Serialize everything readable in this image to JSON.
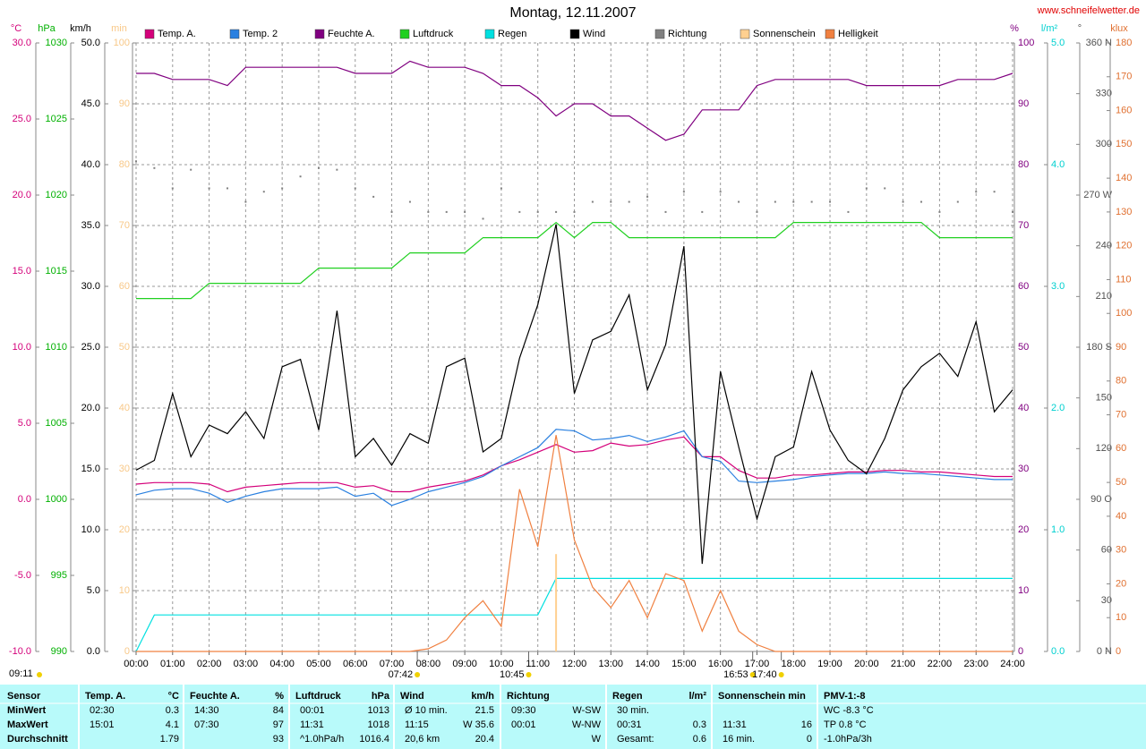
{
  "chart_data": {
    "type": "line",
    "title": "Montag, 12.11.2007",
    "source": "www.schneifelwetter.de",
    "day_length": "09:11",
    "annotations": [
      {
        "x": 7.7,
        "label": "07:42"
      },
      {
        "x": 10.75,
        "label": "10:45"
      },
      {
        "x": 16.883,
        "label": "16:53"
      },
      {
        "x": 17.667,
        "label": "17:40"
      }
    ],
    "xlim": [
      0,
      24
    ],
    "xticks": [
      {
        "value": 0,
        "label": "00:00"
      },
      {
        "value": 1,
        "label": "01:00"
      },
      {
        "value": 2,
        "label": "02:00"
      },
      {
        "value": 3,
        "label": "03:00"
      },
      {
        "value": 4,
        "label": "04:00"
      },
      {
        "value": 5,
        "label": "05:00"
      },
      {
        "value": 6,
        "label": "06:00"
      },
      {
        "value": 7,
        "label": "07:00"
      },
      {
        "value": 8,
        "label": "08:00"
      },
      {
        "value": 9,
        "label": "09:00"
      },
      {
        "value": 10,
        "label": "10:00"
      },
      {
        "value": 11,
        "label": "11:00"
      },
      {
        "value": 12,
        "label": "12:00"
      },
      {
        "value": 13,
        "label": "13:00"
      },
      {
        "value": 14,
        "label": "14:00"
      },
      {
        "value": 15,
        "label": "15:00"
      },
      {
        "value": 16,
        "label": "16:00"
      },
      {
        "value": 17,
        "label": "17:00"
      },
      {
        "value": 18,
        "label": "18:00"
      },
      {
        "value": 19,
        "label": "19:00"
      },
      {
        "value": 20,
        "label": "20:00"
      },
      {
        "value": 21,
        "label": "21:00"
      },
      {
        "value": 22,
        "label": "22:00"
      },
      {
        "value": 23,
        "label": "23:00"
      },
      {
        "value": 24,
        "label": "24:00"
      }
    ],
    "grid": true,
    "x": [
      0,
      0.5,
      1,
      1.5,
      2,
      2.5,
      3,
      3.5,
      4,
      4.5,
      5,
      5.5,
      6,
      6.5,
      7,
      7.5,
      8,
      8.5,
      9,
      9.5,
      10,
      10.5,
      11,
      11.5,
      12,
      12.5,
      13,
      13.5,
      14,
      14.5,
      15,
      15.5,
      16,
      16.5,
      17,
      17.5,
      18,
      18.5,
      19,
      19.5,
      20,
      20.5,
      21,
      21.5,
      22,
      22.5,
      23,
      23.5,
      24
    ],
    "axes": {
      "temp": {
        "title": "°C",
        "color": "#d4007a",
        "zero_line": true,
        "lim": [
          -10,
          30
        ],
        "ticks": [
          {
            "value": -10,
            "label": "-10.0"
          },
          {
            "value": -5,
            "label": "-5.0"
          },
          {
            "value": 0,
            "label": "0.0"
          },
          {
            "value": 5,
            "label": "5.0"
          },
          {
            "value": 10,
            "label": "10.0"
          },
          {
            "value": 15,
            "label": "15.0"
          },
          {
            "value": 20,
            "label": "20.0"
          },
          {
            "value": 25,
            "label": "25.0"
          },
          {
            "value": 30,
            "label": "30.0"
          }
        ]
      },
      "pressure": {
        "title": "hPa",
        "color": "#00b000",
        "lim": [
          990,
          1030
        ],
        "ticks": [
          990,
          995,
          1000,
          1005,
          1010,
          1015,
          1020,
          1025,
          1030
        ]
      },
      "wind": {
        "title": "km/h",
        "color": "#000000",
        "lim": [
          0,
          50
        ],
        "ticks": [
          {
            "value": 0,
            "label": "0.0"
          },
          {
            "value": 5,
            "label": "5.0"
          },
          {
            "value": 10,
            "label": "10.0"
          },
          {
            "value": 15,
            "label": "15.0"
          },
          {
            "value": 20,
            "label": "20.0"
          },
          {
            "value": 25,
            "label": "25.0"
          },
          {
            "value": 30,
            "label": "30.0"
          },
          {
            "value": 35,
            "label": "35.0"
          },
          {
            "value": 40,
            "label": "40.0"
          },
          {
            "value": 45,
            "label": "45.0"
          },
          {
            "value": 50,
            "label": "50.0"
          }
        ]
      },
      "sun": {
        "title": "min",
        "color": "#f8c888",
        "lim": [
          0,
          100
        ],
        "ticks": [
          0,
          10,
          20,
          30,
          40,
          50,
          60,
          70,
          80,
          90,
          100
        ]
      },
      "humidity": {
        "title": "%",
        "color": "#800080",
        "lim": [
          0,
          100
        ],
        "ticks": [
          0,
          10,
          20,
          30,
          40,
          50,
          60,
          70,
          80,
          90,
          100
        ]
      },
      "rain": {
        "title": "l/m²",
        "color": "#00d0d0",
        "lim": [
          0,
          5
        ],
        "ticks": [
          {
            "value": 0,
            "label": "0.0"
          },
          {
            "value": 1,
            "label": "1.0"
          },
          {
            "value": 2,
            "label": "2.0"
          },
          {
            "value": 3,
            "label": "3.0"
          },
          {
            "value": 4,
            "label": "4.0"
          },
          {
            "value": 5,
            "label": "5.0"
          }
        ]
      },
      "direction": {
        "title": "°",
        "color": "#505050",
        "lim": [
          0,
          360
        ],
        "ticks": [
          {
            "value": 0,
            "label": "0 N"
          },
          30,
          60,
          {
            "value": 90,
            "label": "90 O"
          },
          120,
          150,
          {
            "value": 180,
            "label": "180 S"
          },
          210,
          240,
          {
            "value": 270,
            "label": "270 W"
          },
          300,
          330,
          {
            "value": 360,
            "label": "360 N"
          }
        ]
      },
      "light": {
        "title": "klux",
        "color": "#e07030",
        "lim": [
          0,
          180
        ],
        "ticks": [
          0,
          10,
          20,
          30,
          40,
          50,
          60,
          70,
          80,
          90,
          100,
          110,
          120,
          130,
          140,
          150,
          160,
          170,
          180
        ]
      }
    },
    "series": [
      {
        "name": "Temp. A.",
        "color": "#d4007a",
        "axis": "temp",
        "values": [
          1.0,
          1.1,
          1.1,
          1.1,
          1.0,
          0.5,
          0.8,
          0.9,
          1.0,
          1.1,
          1.1,
          1.1,
          0.8,
          0.9,
          0.5,
          0.5,
          0.8,
          1.0,
          1.2,
          1.6,
          2.2,
          2.6,
          3.1,
          3.6,
          3.1,
          3.2,
          3.7,
          3.5,
          3.6,
          3.9,
          4.1,
          2.8,
          2.8,
          1.9,
          1.4,
          1.4,
          1.6,
          1.6,
          1.7,
          1.8,
          1.8,
          1.9,
          1.9,
          1.8,
          1.8,
          1.7,
          1.6,
          1.5,
          1.5
        ]
      },
      {
        "name": "Temp. 2",
        "color": "#2a80e0",
        "axis": "temp",
        "values": [
          0.3,
          0.6,
          0.7,
          0.7,
          0.4,
          -0.2,
          0.2,
          0.5,
          0.7,
          0.7,
          0.7,
          0.8,
          0.2,
          0.4,
          -0.4,
          0.0,
          0.5,
          0.8,
          1.1,
          1.5,
          2.2,
          2.8,
          3.4,
          4.6,
          4.5,
          3.9,
          4.0,
          4.2,
          3.8,
          4.1,
          4.5,
          2.8,
          2.5,
          1.2,
          1.1,
          1.2,
          1.3,
          1.5,
          1.6,
          1.7,
          1.7,
          1.8,
          1.7,
          1.7,
          1.6,
          1.5,
          1.4,
          1.3,
          1.3
        ]
      },
      {
        "name": "Feuchte A.",
        "color": "#800080",
        "axis": "humidity",
        "values": [
          95,
          95,
          94,
          94,
          94,
          93,
          96,
          96,
          96,
          96,
          96,
          96,
          95,
          95,
          95,
          97,
          96,
          96,
          96,
          95,
          93,
          93,
          91,
          88,
          90,
          90,
          88,
          88,
          86,
          84,
          85,
          89,
          89,
          89,
          93,
          94,
          94,
          94,
          94,
          94,
          93,
          93,
          93,
          93,
          93,
          94,
          94,
          94,
          95
        ]
      },
      {
        "name": "Luftdruck",
        "color": "#20d020",
        "axis": "pressure",
        "values": [
          1013.2,
          1013.2,
          1013.2,
          1013.2,
          1014.2,
          1014.2,
          1014.2,
          1014.2,
          1014.2,
          1014.2,
          1015.2,
          1015.2,
          1015.2,
          1015.2,
          1015.2,
          1016.2,
          1016.2,
          1016.2,
          1016.2,
          1017.2,
          1017.2,
          1017.2,
          1017.2,
          1018.2,
          1017.2,
          1018.2,
          1018.2,
          1017.2,
          1017.2,
          1017.2,
          1017.2,
          1017.2,
          1017.2,
          1017.2,
          1017.2,
          1017.2,
          1018.2,
          1018.2,
          1018.2,
          1018.2,
          1018.2,
          1018.2,
          1018.2,
          1018.2,
          1017.2,
          1017.2,
          1017.2,
          1017.2,
          1017.2
        ]
      },
      {
        "name": "Regen",
        "color": "#00e0e0",
        "axis": "rain",
        "values": [
          0,
          0.3,
          0.3,
          0.3,
          0.3,
          0.3,
          0.3,
          0.3,
          0.3,
          0.3,
          0.3,
          0.3,
          0.3,
          0.3,
          0.3,
          0.3,
          0.3,
          0.3,
          0.3,
          0.3,
          0.3,
          0.3,
          0.3,
          0.6,
          0.6,
          0.6,
          0.6,
          0.6,
          0.6,
          0.6,
          0.6,
          0.6,
          0.6,
          0.6,
          0.6,
          0.6,
          0.6,
          0.6,
          0.6,
          0.6,
          0.6,
          0.6,
          0.6,
          0.6,
          0.6,
          0.6,
          0.6,
          0.6,
          0.6
        ]
      },
      {
        "name": "Wind",
        "color": "#000000",
        "axis": "wind",
        "values": [
          14.9,
          15.7,
          21.2,
          16.0,
          18.6,
          17.9,
          19.7,
          17.5,
          23.4,
          24.0,
          18.2,
          28.0,
          16.0,
          17.5,
          15.3,
          17.9,
          17.1,
          23.4,
          24.1,
          16.4,
          17.5,
          24.1,
          28.5,
          35.1,
          21.2,
          25.6,
          26.3,
          29.3,
          21.5,
          25.2,
          33.3,
          7.2,
          23.0,
          16.8,
          10.9,
          16.0,
          16.8,
          23.0,
          18.2,
          15.7,
          14.6,
          17.5,
          21.5,
          23.4,
          24.5,
          22.6,
          27.1,
          19.7,
          21.5
        ]
      },
      {
        "name": "Richtung",
        "color": "#808080",
        "axis": "direction",
        "style": "dots",
        "values": [
          290,
          286,
          274,
          285,
          274,
          274,
          266,
          272,
          274,
          281,
          286,
          285,
          274,
          269,
          260,
          266,
          260,
          260,
          260,
          256,
          274,
          260,
          260,
          260,
          260,
          266,
          266,
          266,
          269,
          260,
          272,
          260,
          272,
          266,
          260,
          266,
          266,
          266,
          266,
          260,
          274,
          274,
          266,
          266,
          260,
          266,
          272,
          272,
          260
        ]
      },
      {
        "name": "Sonnenschein",
        "color": "#ffd090",
        "axis": "sun",
        "style": "bars",
        "x": [
          11.5
        ],
        "values": [
          16
        ]
      },
      {
        "name": "Helligkeit",
        "color": "#f08040",
        "axis": "light",
        "values": [
          0,
          0,
          0,
          0,
          0,
          0,
          0,
          0,
          0,
          0,
          0,
          0,
          0,
          0,
          0,
          0,
          0.8,
          3.4,
          10,
          15,
          7.4,
          48,
          31,
          64,
          33,
          19,
          13,
          21,
          10,
          23,
          21,
          6,
          18,
          6,
          2,
          0,
          0,
          0,
          0,
          0,
          0,
          0,
          0,
          0,
          0,
          0,
          0,
          0,
          0
        ]
      }
    ]
  },
  "table": {
    "groups": [
      {
        "title": "Sensor",
        "rows": [
          [
            "MinWert"
          ],
          [
            "MaxWert"
          ],
          [
            "Durchschnitt"
          ]
        ]
      },
      {
        "title": "Temp. A.",
        "unit": "°C",
        "rows": [
          [
            "02:30",
            "0.3"
          ],
          [
            "15:01",
            "4.1"
          ],
          [
            null,
            "1.79"
          ]
        ]
      },
      {
        "title": "Feuchte A.",
        "unit": "%",
        "rows": [
          [
            "14:30",
            "84"
          ],
          [
            "07:30",
            "97"
          ],
          [
            null,
            "93"
          ]
        ]
      },
      {
        "title": "Luftdruck",
        "unit": "hPa",
        "rows": [
          [
            "00:01",
            "1013"
          ],
          [
            "11:31",
            "1018"
          ],
          [
            "^1.0hPa/h",
            "1016.4"
          ]
        ]
      },
      {
        "title": "Wind",
        "unit": "km/h",
        "rows": [
          [
            "Ø 10 min.",
            "21.5"
          ],
          [
            "11:15",
            "W 35.6"
          ],
          [
            "20,6 km",
            "20.4"
          ]
        ]
      },
      {
        "title": "Richtung",
        "rows": [
          [
            "09:30",
            "W-SW"
          ],
          [
            "00:01",
            "W-NW"
          ],
          [
            null,
            "W"
          ]
        ]
      },
      {
        "title": "Regen",
        "unit": "l/m²",
        "rows": [
          [
            "30 min.",
            null
          ],
          [
            "00:31",
            "0.3"
          ],
          [
            "Gesamt:",
            "0.6"
          ]
        ]
      },
      {
        "title": "Sonnenschein min",
        "rows": [
          [
            null,
            null
          ],
          [
            "11:31",
            "16"
          ],
          [
            "16 min.",
            "0"
          ]
        ]
      },
      {
        "title": "PMV-1:-8",
        "rows": [
          [
            "WC -8.3 °C"
          ],
          [
            "TP 0.8 °C"
          ],
          [
            "-1.0hPa/3h"
          ]
        ]
      }
    ]
  }
}
